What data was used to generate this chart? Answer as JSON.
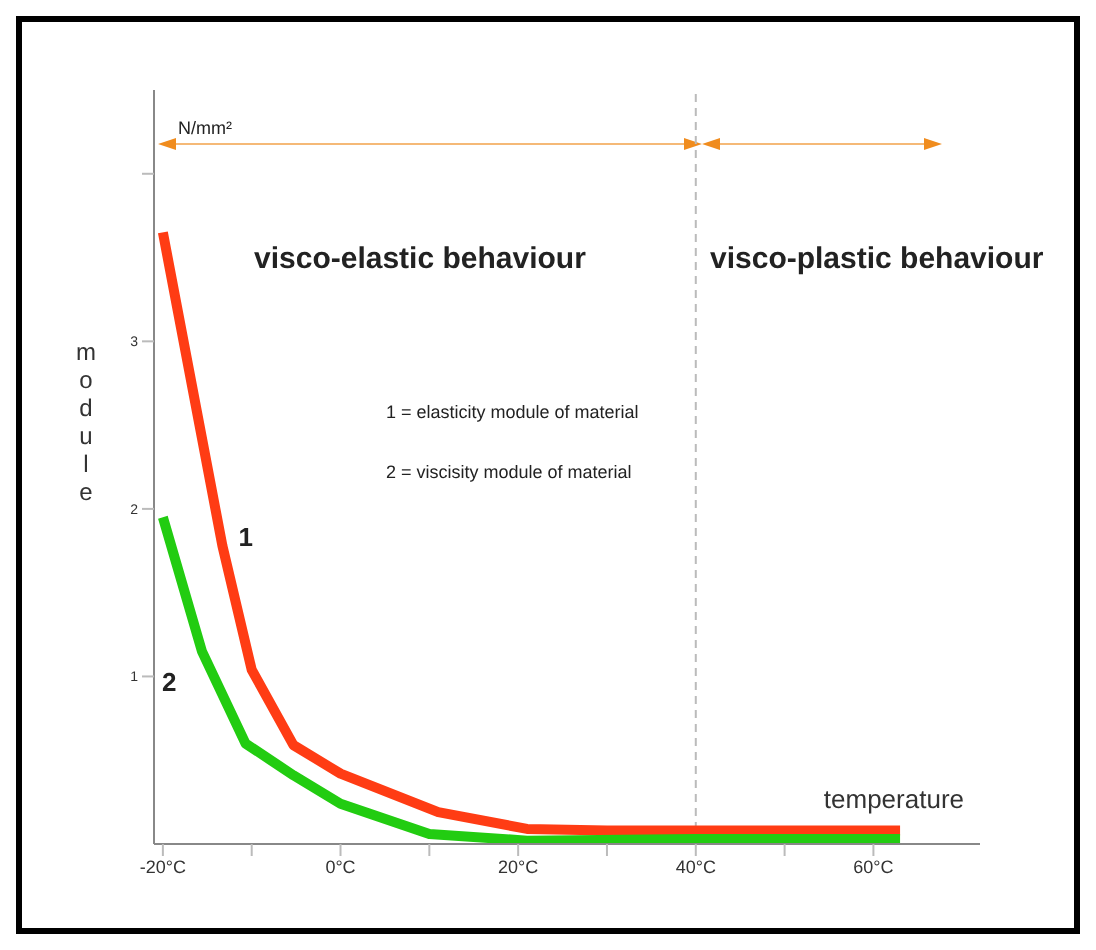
{
  "chart_data": {
    "type": "line",
    "xlabel": "temperature",
    "ylabel": "module",
    "annotations": [
      "N/mm²",
      "1 = elasticity module of material",
      "2 = viscisity module of material",
      "visco-elastic behaviour",
      "visco-plastic behaviour"
    ],
    "x": [
      -20,
      -13.3,
      -10,
      -5.3,
      0,
      11,
      21,
      30,
      43,
      63
    ],
    "series": [
      {
        "name": "1",
        "color": "#ff3c14",
        "values": [
          3.65,
          1.78,
          1.04,
          0.59,
          0.42,
          0.19,
          0.09,
          0.08,
          0.08,
          0.08
        ]
      },
      {
        "name": "2",
        "color": "#22cc11",
        "x": [
          -20,
          -15.6,
          -10.7,
          -5.3,
          0,
          10,
          21,
          40,
          63
        ],
        "values": [
          1.95,
          1.15,
          0.6,
          0.41,
          0.24,
          0.06,
          0.02,
          0.03,
          0.03
        ]
      }
    ],
    "xlim": [
      -21,
      72
    ],
    "xticks": [
      {
        "value": -20,
        "label": "-20°C"
      },
      {
        "value": -10,
        "label": null
      },
      {
        "value": 0,
        "label": "0°C"
      },
      {
        "value": 10,
        "label": null
      },
      {
        "value": 20,
        "label": "20°C"
      },
      {
        "value": 30,
        "label": null
      },
      {
        "value": 40,
        "label": "40°C"
      },
      {
        "value": 50,
        "label": null
      },
      {
        "value": 60,
        "label": "60°C"
      }
    ],
    "ylim": [
      0,
      4.5
    ],
    "yticks": [
      1,
      2,
      3,
      {
        "value": 4,
        "label": null
      }
    ],
    "ref_lines": [
      {
        "axis": "x",
        "value": 40,
        "color": "#bbbbbb",
        "line_style": "dashed"
      }
    ],
    "grid": false,
    "legend": false,
    "marker": "none",
    "line_style": "solid"
  }
}
